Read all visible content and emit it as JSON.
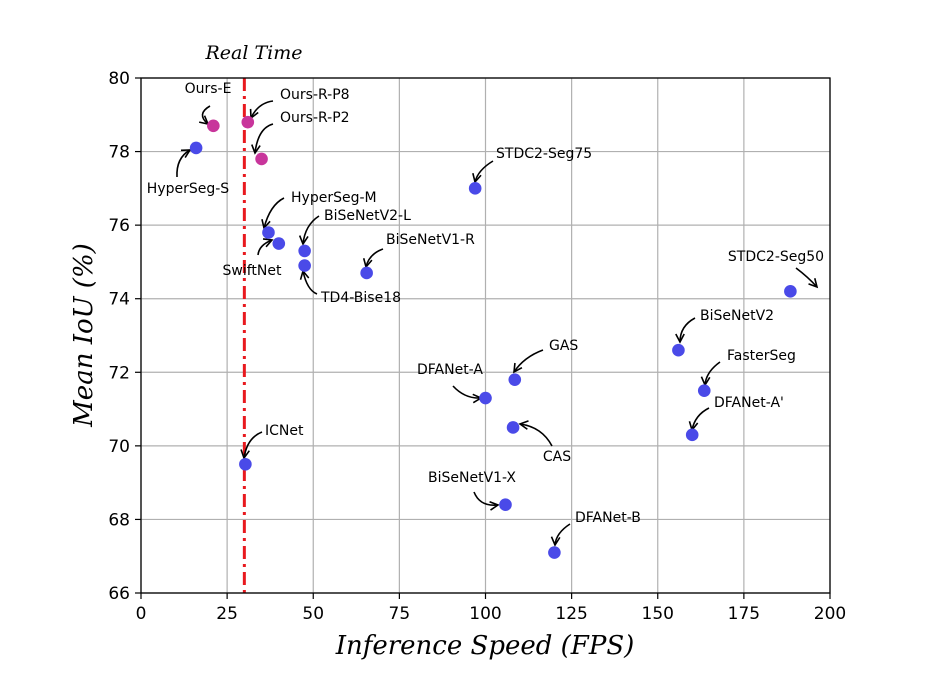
{
  "chart_data": {
    "type": "scatter",
    "xlabel": "Inference Speed (FPS)",
    "ylabel": "Mean IoU (%)",
    "xlim": [
      0,
      200
    ],
    "ylim": [
      66,
      80
    ],
    "xticks": [
      0,
      25,
      50,
      75,
      100,
      125,
      150,
      175,
      200
    ],
    "yticks": [
      66,
      68,
      70,
      72,
      74,
      76,
      78,
      80
    ],
    "grid": true,
    "reference_line": {
      "x": 30,
      "label": "Real Time",
      "color": "#e8191e",
      "style": "dash-dot"
    },
    "colors": {
      "ours": "#c8359b",
      "others": "#4a4ae8"
    },
    "points": [
      {
        "label": "Ours-E",
        "x": 21,
        "y": 78.7,
        "group": "ours"
      },
      {
        "label": "Ours-R-P8",
        "x": 31,
        "y": 78.8,
        "group": "ours"
      },
      {
        "label": "Ours-R-P2",
        "x": 35,
        "y": 77.8,
        "group": "ours"
      },
      {
        "label": "HyperSeg-S",
        "x": 16,
        "y": 78.1,
        "group": "others"
      },
      {
        "label": "HyperSeg-M",
        "x": 37,
        "y": 75.8,
        "group": "others"
      },
      {
        "label": "SwiftNet",
        "x": 40,
        "y": 75.5,
        "group": "others"
      },
      {
        "label": "BiSeNetV2-L",
        "x": 47.5,
        "y": 75.3,
        "group": "others"
      },
      {
        "label": "TD4-Bise18",
        "x": 47.5,
        "y": 74.9,
        "group": "others"
      },
      {
        "label": "BiSeNetV1-R",
        "x": 65.5,
        "y": 74.7,
        "group": "others"
      },
      {
        "label": "STDC2-Seg75",
        "x": 97,
        "y": 77.0,
        "group": "others"
      },
      {
        "label": "STDC2-Seg50",
        "x": 188.5,
        "y": 74.2,
        "group": "others"
      },
      {
        "label": "BiSeNetV2",
        "x": 156,
        "y": 72.6,
        "group": "others"
      },
      {
        "label": "FasterSeg",
        "x": 163.5,
        "y": 71.5,
        "group": "others"
      },
      {
        "label": "DFANet-A'",
        "x": 160,
        "y": 70.3,
        "group": "others"
      },
      {
        "label": "GAS",
        "x": 108.5,
        "y": 71.8,
        "group": "others"
      },
      {
        "label": "DFANet-A",
        "x": 100,
        "y": 71.3,
        "group": "others"
      },
      {
        "label": "CAS",
        "x": 108,
        "y": 70.5,
        "group": "others"
      },
      {
        "label": "ICNet",
        "x": 30.3,
        "y": 69.5,
        "group": "others"
      },
      {
        "label": "BiSeNetV1-X",
        "x": 105.8,
        "y": 68.4,
        "group": "others"
      },
      {
        "label": "DFANet-B",
        "x": 120,
        "y": 67.1,
        "group": "others"
      }
    ]
  }
}
